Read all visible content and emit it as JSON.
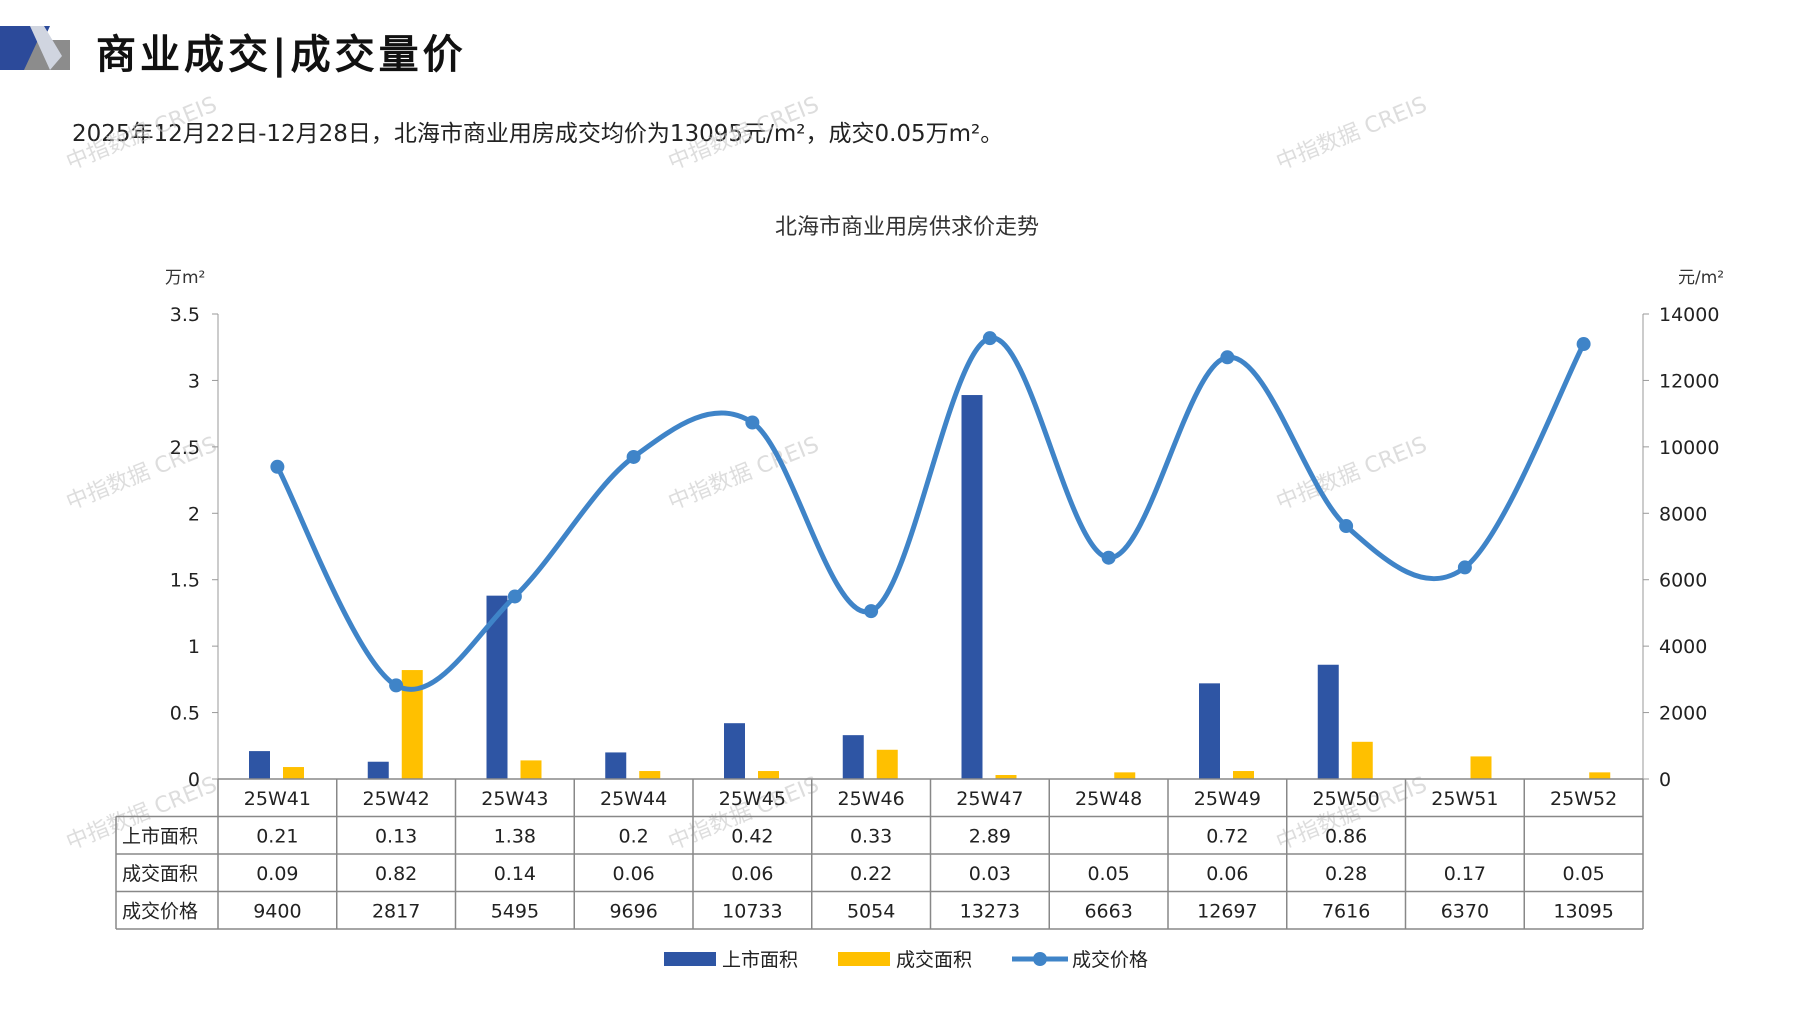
{
  "header": {
    "title": "商业成交|成交量价",
    "summary": "2025年12月22日-12月28日，北海市商业用房成交均价为13095元/m²，成交0.05万m²。"
  },
  "watermark": "中指数据 CREIS",
  "colors": {
    "supply": "#2E55A4",
    "deal_area": "#FFC000",
    "price": "#3F84C8",
    "logo_dark": "#2C4A9A",
    "logo_gray": "#7F7F7F"
  },
  "chart_data": {
    "type": "bar",
    "title": "北海市商业用房供求价走势",
    "ylabel_left": "万m²",
    "ylabel_right": "元/m²",
    "ylim_left": [
      0,
      3.5
    ],
    "yticks_left": [
      "0",
      "0.5",
      "1",
      "1.5",
      "2",
      "2.5",
      "3",
      "3.5"
    ],
    "ylim_right": [
      0,
      14000
    ],
    "yticks_right": [
      "0",
      "2000",
      "4000",
      "6000",
      "8000",
      "10000",
      "12000",
      "14000"
    ],
    "categories": [
      "25W41",
      "25W42",
      "25W43",
      "25W44",
      "25W45",
      "25W46",
      "25W47",
      "25W48",
      "25W49",
      "25W50",
      "25W51",
      "25W52"
    ],
    "series": [
      {
        "name": "上市面积",
        "type": "bar",
        "axis": "left",
        "values": [
          0.21,
          0.13,
          1.38,
          0.2,
          0.42,
          0.33,
          2.89,
          null,
          0.72,
          0.86,
          null,
          null
        ]
      },
      {
        "name": "成交面积",
        "type": "bar",
        "axis": "left",
        "values": [
          0.09,
          0.82,
          0.14,
          0.06,
          0.06,
          0.22,
          0.03,
          0.05,
          0.06,
          0.28,
          0.17,
          0.05
        ]
      },
      {
        "name": "成交价格",
        "type": "line",
        "axis": "right",
        "smooth": true,
        "values": [
          9400,
          2817,
          5495,
          9696,
          10733,
          5054,
          13273,
          6663,
          12697,
          7616,
          6370,
          13095
        ]
      }
    ],
    "table": {
      "rows": [
        {
          "label": "上市面积",
          "cells": [
            "0.21",
            "0.13",
            "1.38",
            "0.2",
            "0.42",
            "0.33",
            "2.89",
            "",
            "0.72",
            "0.86",
            "",
            ""
          ]
        },
        {
          "label": "成交面积",
          "cells": [
            "0.09",
            "0.82",
            "0.14",
            "0.06",
            "0.06",
            "0.22",
            "0.03",
            "0.05",
            "0.06",
            "0.28",
            "0.17",
            "0.05"
          ]
        },
        {
          "label": "成交价格",
          "cells": [
            "9400",
            "2817",
            "5495",
            "9696",
            "10733",
            "5054",
            "13273",
            "6663",
            "12697",
            "7616",
            "6370",
            "13095"
          ]
        }
      ]
    },
    "legend": {
      "position": "bottom",
      "items": [
        "上市面积",
        "成交面积",
        "成交价格"
      ]
    },
    "grid": false
  }
}
